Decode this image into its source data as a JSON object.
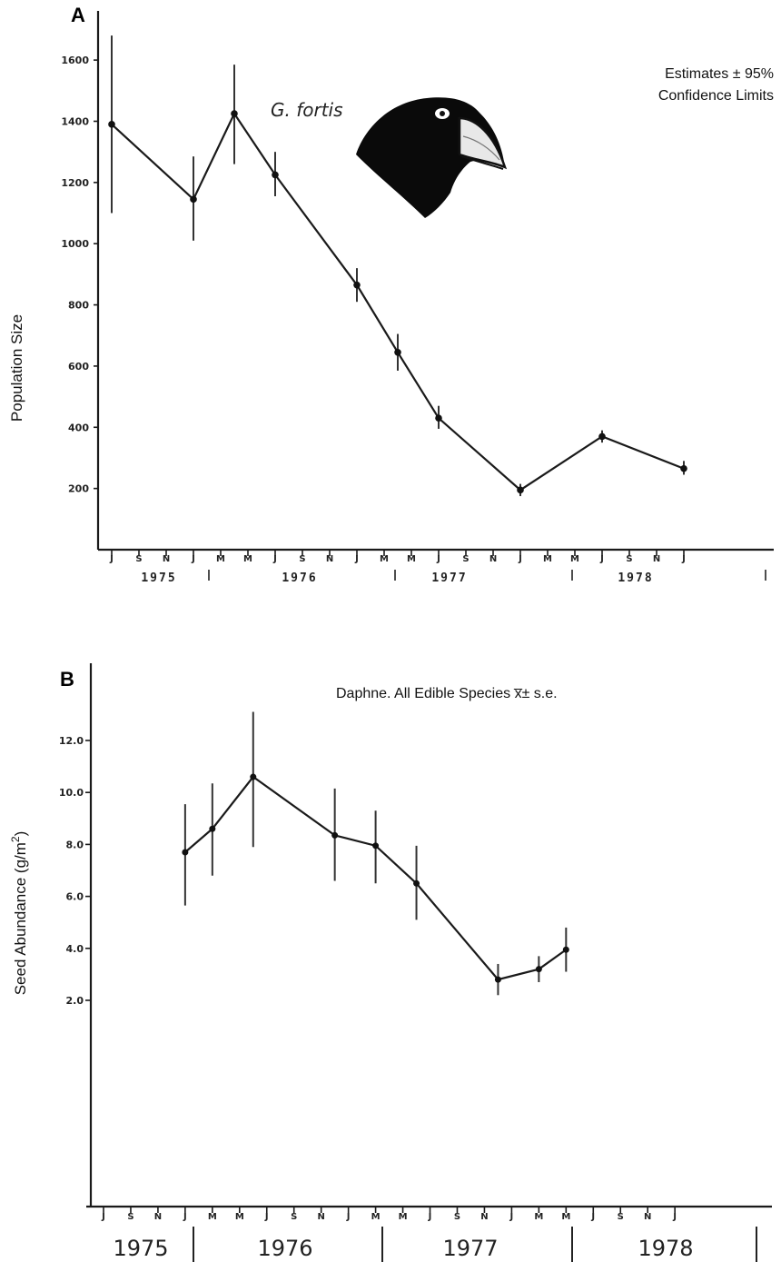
{
  "chart_data": [
    {
      "type": "line",
      "panel_label": "A",
      "ylabel": "Population Size",
      "annotation_line1": "Estimates  ± 95%",
      "annotation_line2": "Confidence Limits",
      "species_label": "G. fortis",
      "icon": "finch-head-icon",
      "yticks": [
        "200",
        "400",
        "600",
        "800",
        "1000",
        "1200",
        "1400",
        "1600"
      ],
      "ylim": [
        0,
        1750
      ],
      "months": [
        "J",
        "S",
        "N",
        "J",
        "M",
        "M",
        "J",
        "S",
        "N",
        "J",
        "M",
        "M",
        "J",
        "S",
        "N",
        "J",
        "M",
        "M",
        "J",
        "S",
        "N",
        "J"
      ],
      "years": [
        "1975",
        "1976",
        "1977",
        "1978"
      ],
      "series": [
        {
          "x": [
            "1975-07",
            "1976-01",
            "1976-04",
            "1976-07",
            "1977-01",
            "1977-04",
            "1977-07",
            "1978-01",
            "1978-07",
            "1979-01"
          ],
          "values": [
            1390,
            1145,
            1425,
            1225,
            865,
            645,
            430,
            195,
            370,
            265
          ],
          "lower": [
            1100,
            1010,
            1260,
            1155,
            810,
            585,
            395,
            175,
            350,
            245
          ],
          "upper": [
            1680,
            1285,
            1585,
            1300,
            920,
            705,
            470,
            215,
            390,
            290
          ]
        }
      ]
    },
    {
      "type": "line",
      "panel_label": "B",
      "ylabel": "Seed Abundance (g/m",
      "ylabel_sup": "2",
      "ylabel_end": ")",
      "annotation": "Daphne. All Edible Species x̅± s.e.",
      "yticks": [
        "2.0",
        "4.0",
        "6.0",
        "8.0",
        "10.0",
        "12.0"
      ],
      "ylim": [
        0,
        13.5
      ],
      "months": [
        "J",
        "S",
        "N",
        "J",
        "M",
        "M",
        "J",
        "S",
        "N",
        "J",
        "M",
        "M",
        "J",
        "S",
        "N",
        "J",
        "M",
        "M",
        "J",
        "S",
        "N",
        "J"
      ],
      "years": [
        "1975",
        "1976",
        "1977",
        "1978"
      ],
      "series": [
        {
          "x": [
            "1976-01",
            "1976-03",
            "1976-06",
            "1976-12",
            "1977-03",
            "1977-06",
            "1977-12",
            "1978-03",
            "1978-05"
          ],
          "values": [
            7.7,
            8.6,
            10.6,
            8.35,
            7.95,
            6.5,
            2.8,
            3.2,
            3.95
          ],
          "lower": [
            5.65,
            6.8,
            7.9,
            6.6,
            6.5,
            5.1,
            2.2,
            2.7,
            3.1
          ],
          "upper": [
            9.55,
            10.35,
            13.1,
            10.15,
            9.3,
            7.95,
            3.4,
            3.7,
            4.8
          ]
        }
      ]
    }
  ]
}
